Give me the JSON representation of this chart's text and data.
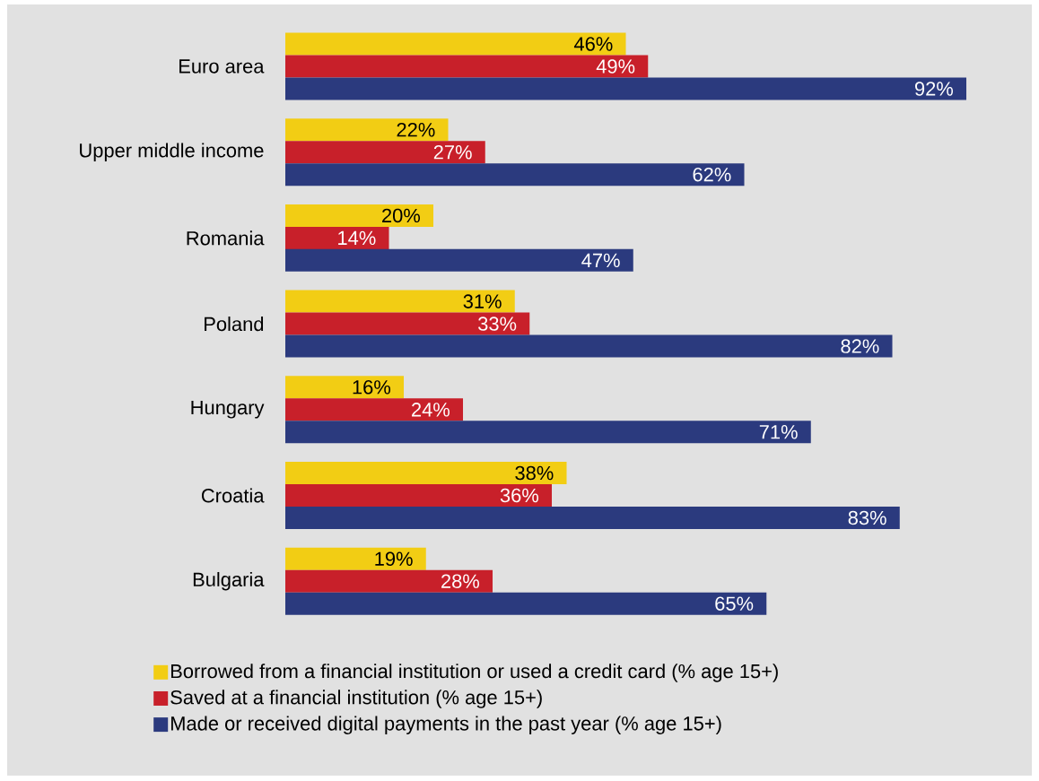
{
  "chart_data": {
    "type": "bar",
    "orientation": "horizontal",
    "legend": "bottom",
    "categories": [
      "Euro area",
      "Upper middle income",
      "Romania",
      "Poland",
      "Hungary",
      "Croatia",
      "Bulgaria"
    ],
    "series": [
      {
        "name": "Borrowed from a financial institution or used a credit card (% age 15+)",
        "color": "#f2cd14",
        "values": [
          46,
          22,
          20,
          31,
          16,
          38,
          19
        ],
        "value_labels": [
          "46%",
          "22%",
          "20%",
          "31%",
          "16%",
          "38%",
          "19%"
        ]
      },
      {
        "name": "Saved at a financial institution (% age 15+)",
        "color": "#c8202a",
        "values": [
          49,
          27,
          14,
          33,
          24,
          36,
          28
        ],
        "value_labels": [
          "49%",
          "27%",
          "14%",
          "33%",
          "24%",
          "36%",
          "28%"
        ]
      },
      {
        "name": "Made or received digital payments in the past year (% age 15+)",
        "color": "#2b3a7e",
        "values": [
          92,
          62,
          47,
          82,
          71,
          83,
          65
        ],
        "value_labels": [
          "92%",
          "62%",
          "47%",
          "82%",
          "71%",
          "83%",
          "65%"
        ]
      }
    ]
  }
}
